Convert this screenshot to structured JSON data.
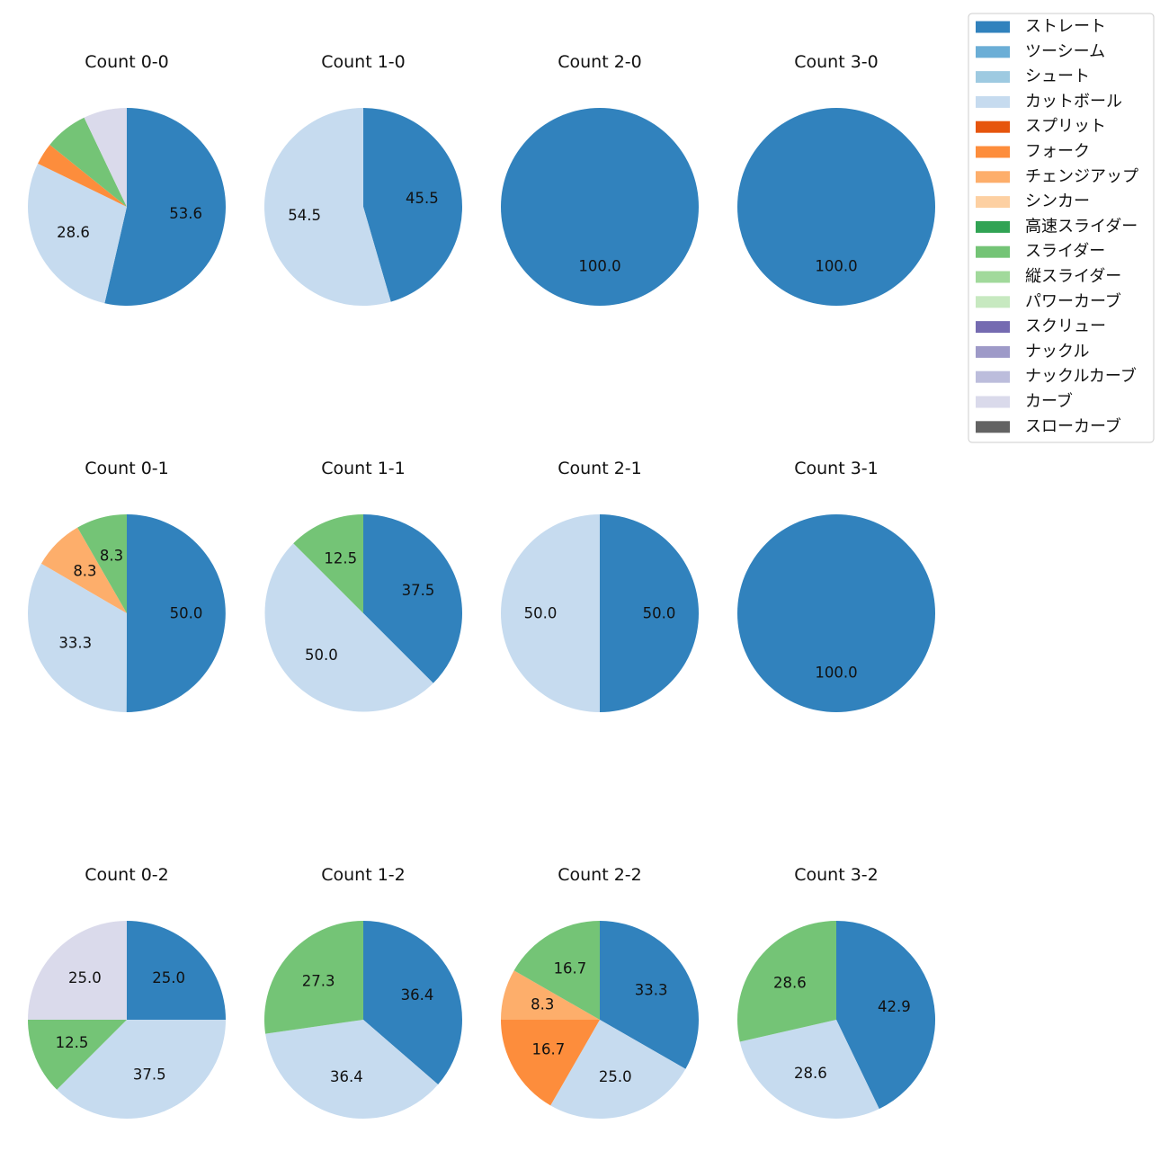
{
  "chart_data": {
    "type": "pie",
    "legend_position": "top-right",
    "pitch_types": [
      {
        "name": "ストレート",
        "color": "#3182bd"
      },
      {
        "name": "ツーシーム",
        "color": "#6baed6"
      },
      {
        "name": "シュート",
        "color": "#9ecae1"
      },
      {
        "name": "カットボール",
        "color": "#c6dbef"
      },
      {
        "name": "スプリット",
        "color": "#e6550d"
      },
      {
        "name": "フォーク",
        "color": "#fd8d3c"
      },
      {
        "name": "チェンジアップ",
        "color": "#fdae6b"
      },
      {
        "name": "シンカー",
        "color": "#fdd0a2"
      },
      {
        "name": "高速スライダー",
        "color": "#31a354"
      },
      {
        "name": "スライダー",
        "color": "#74c476"
      },
      {
        "name": "縦スライダー",
        "color": "#a1d99b"
      },
      {
        "name": "パワーカーブ",
        "color": "#c7e9c0"
      },
      {
        "name": "スクリュー",
        "color": "#756bb1"
      },
      {
        "name": "ナックル",
        "color": "#9e9ac8"
      },
      {
        "name": "ナックルカーブ",
        "color": "#bcbddc"
      },
      {
        "name": "カーブ",
        "color": "#dadaeb"
      },
      {
        "name": "スローカーブ",
        "color": "#636363"
      }
    ],
    "panels": [
      {
        "title": "Count 0-0",
        "slices": [
          {
            "type": "ストレート",
            "value": 53.6,
            "label": "53.6"
          },
          {
            "type": "カットボール",
            "value": 28.6,
            "label": "28.6"
          },
          {
            "type": "フォーク",
            "value": 3.6,
            "label": ""
          },
          {
            "type": "スライダー",
            "value": 7.1,
            "label": ""
          },
          {
            "type": "カーブ",
            "value": 7.1,
            "label": ""
          }
        ]
      },
      {
        "title": "Count 1-0",
        "slices": [
          {
            "type": "ストレート",
            "value": 45.5,
            "label": "45.5"
          },
          {
            "type": "カットボール",
            "value": 54.5,
            "label": "54.5"
          }
        ]
      },
      {
        "title": "Count 2-0",
        "slices": [
          {
            "type": "ストレート",
            "value": 100.0,
            "label": "100.0"
          }
        ]
      },
      {
        "title": "Count 3-0",
        "slices": [
          {
            "type": "ストレート",
            "value": 100.0,
            "label": "100.0"
          }
        ]
      },
      {
        "title": "Count 0-1",
        "slices": [
          {
            "type": "ストレート",
            "value": 50.0,
            "label": "50.0"
          },
          {
            "type": "カットボール",
            "value": 33.3,
            "label": "33.3"
          },
          {
            "type": "チェンジアップ",
            "value": 8.3,
            "label": "8.3"
          },
          {
            "type": "スライダー",
            "value": 8.3,
            "label": "8.3"
          }
        ]
      },
      {
        "title": "Count 1-1",
        "slices": [
          {
            "type": "ストレート",
            "value": 37.5,
            "label": "37.5"
          },
          {
            "type": "カットボール",
            "value": 50.0,
            "label": "50.0"
          },
          {
            "type": "スライダー",
            "value": 12.5,
            "label": "12.5"
          }
        ]
      },
      {
        "title": "Count 2-1",
        "slices": [
          {
            "type": "ストレート",
            "value": 50.0,
            "label": "50.0"
          },
          {
            "type": "カットボール",
            "value": 50.0,
            "label": "50.0"
          }
        ]
      },
      {
        "title": "Count 3-1",
        "slices": [
          {
            "type": "ストレート",
            "value": 100.0,
            "label": "100.0"
          }
        ]
      },
      {
        "title": "Count 0-2",
        "slices": [
          {
            "type": "ストレート",
            "value": 25.0,
            "label": "25.0"
          },
          {
            "type": "カットボール",
            "value": 37.5,
            "label": "37.5"
          },
          {
            "type": "スライダー",
            "value": 12.5,
            "label": "12.5"
          },
          {
            "type": "カーブ",
            "value": 25.0,
            "label": "25.0"
          }
        ]
      },
      {
        "title": "Count 1-2",
        "slices": [
          {
            "type": "ストレート",
            "value": 36.4,
            "label": "36.4"
          },
          {
            "type": "カットボール",
            "value": 36.4,
            "label": "36.4"
          },
          {
            "type": "スライダー",
            "value": 27.3,
            "label": "27.3"
          }
        ]
      },
      {
        "title": "Count 2-2",
        "slices": [
          {
            "type": "ストレート",
            "value": 33.3,
            "label": "33.3"
          },
          {
            "type": "カットボール",
            "value": 25.0,
            "label": "25.0"
          },
          {
            "type": "フォーク",
            "value": 16.7,
            "label": "16.7"
          },
          {
            "type": "チェンジアップ",
            "value": 8.3,
            "label": "8.3"
          },
          {
            "type": "スライダー",
            "value": 16.7,
            "label": "16.7"
          }
        ]
      },
      {
        "title": "Count 3-2",
        "slices": [
          {
            "type": "ストレート",
            "value": 42.9,
            "label": "42.9"
          },
          {
            "type": "カットボール",
            "value": 28.6,
            "label": "28.6"
          },
          {
            "type": "スライダー",
            "value": 28.6,
            "label": "28.6"
          }
        ]
      }
    ]
  }
}
